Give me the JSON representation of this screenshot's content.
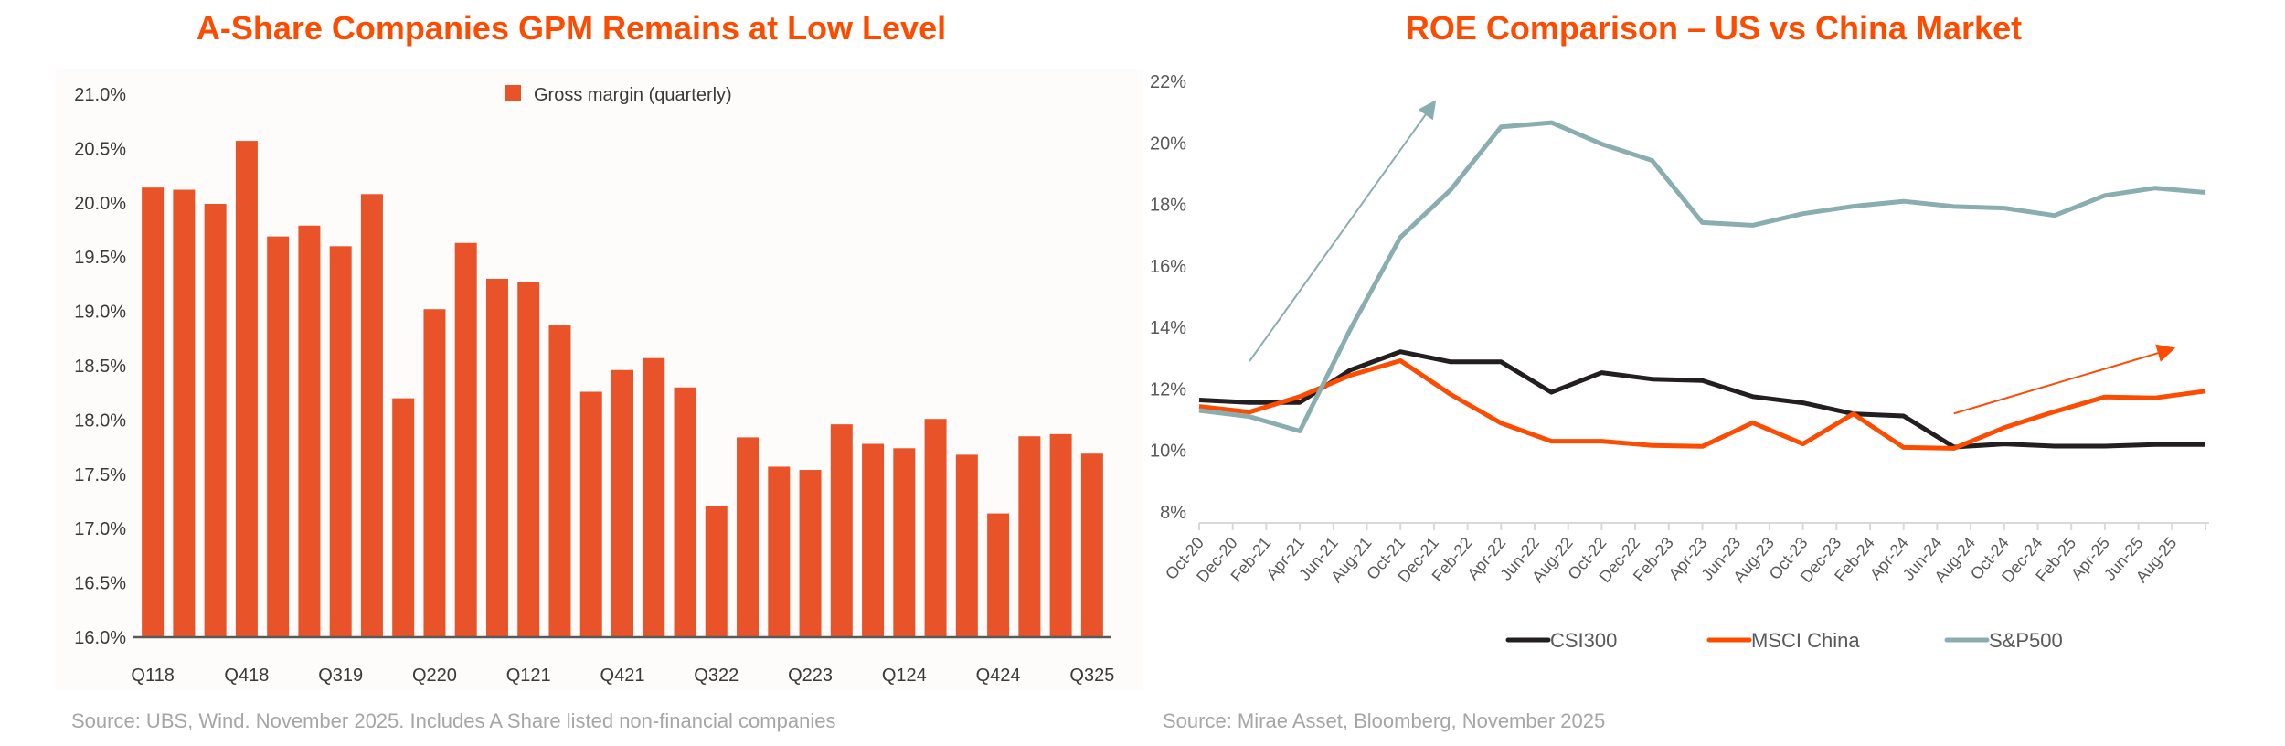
{
  "chart_data": [
    {
      "type": "bar",
      "title": "A-Share Companies GPM Remains at Low Level",
      "xlabel": "",
      "ylabel": "",
      "ylim": [
        16.0,
        21.0
      ],
      "yticks": [
        "16.0%",
        "16.5%",
        "17.0%",
        "17.5%",
        "18.0%",
        "18.5%",
        "19.0%",
        "19.5%",
        "20.0%",
        "20.5%",
        "21.0%"
      ],
      "ytick_values": [
        16.0,
        16.5,
        17.0,
        17.5,
        18.0,
        18.5,
        19.0,
        19.5,
        20.0,
        20.5,
        21.0
      ],
      "categories": [
        "Q118",
        "Q218",
        "Q318",
        "Q418",
        "Q119",
        "Q219",
        "Q319",
        "Q419",
        "Q120",
        "Q220",
        "Q320",
        "Q420",
        "Q121",
        "Q221",
        "Q321",
        "Q421",
        "Q122",
        "Q222",
        "Q322",
        "Q422",
        "Q123",
        "Q223",
        "Q323",
        "Q423",
        "Q124",
        "Q224",
        "Q324",
        "Q424",
        "Q125",
        "Q225",
        "Q325"
      ],
      "xtick_labels": [
        "Q118",
        "Q418",
        "Q319",
        "Q220",
        "Q121",
        "Q421",
        "Q322",
        "Q223",
        "Q124",
        "Q424",
        "Q325"
      ],
      "xtick_every": 3,
      "series": [
        {
          "name": "Gross margin (quarterly)",
          "color": "#e8532a",
          "values": [
            20.14,
            20.12,
            19.99,
            20.57,
            19.69,
            19.79,
            19.6,
            20.08,
            18.2,
            19.02,
            19.63,
            19.3,
            19.27,
            18.87,
            18.26,
            18.46,
            18.57,
            18.3,
            17.21,
            17.84,
            17.57,
            17.54,
            17.96,
            17.78,
            17.74,
            18.01,
            17.68,
            17.14,
            17.85,
            17.87,
            17.69
          ]
        }
      ],
      "legend": "top-center",
      "grid": false,
      "source": "Source: UBS, Wind. November 2025. Includes A Share listed non-financial companies"
    },
    {
      "type": "line",
      "title": "ROE Comparison – US vs China Market",
      "xlabel": "",
      "ylabel": "",
      "ylim": [
        8,
        22
      ],
      "yticks": [
        "8%",
        "10%",
        "12%",
        "14%",
        "16%",
        "18%",
        "20%",
        "22%"
      ],
      "ytick_values": [
        8,
        10,
        12,
        14,
        16,
        18,
        20,
        22
      ],
      "xtick_labels": [
        "Oct-20",
        "Dec-20",
        "Feb-21",
        "Apr-21",
        "Jun-21",
        "Aug-21",
        "Oct-21",
        "Dec-21",
        "Feb-22",
        "Apr-22",
        "Jun-22",
        "Aug-22",
        "Oct-22",
        "Dec-22",
        "Feb-23",
        "Apr-23",
        "Jun-23",
        "Aug-23",
        "Oct-23",
        "Dec-23",
        "Feb-24",
        "Apr-24",
        "Jun-24",
        "Aug-24",
        "Oct-24",
        "Dec-24",
        "Feb-25",
        "Apr-25",
        "Jun-25",
        "Aug-25"
      ],
      "x_months_from_oct20": [
        0,
        3,
        6,
        9,
        12,
        15,
        18,
        21,
        24,
        27,
        30,
        33,
        36,
        39,
        42,
        45,
        48,
        51,
        54,
        57,
        60
      ],
      "series": [
        {
          "name": "CSI300",
          "color": "#231f20",
          "values": [
            11.64,
            11.56,
            11.56,
            12.61,
            13.21,
            12.88,
            12.88,
            11.89,
            12.53,
            12.32,
            12.27,
            11.75,
            11.55,
            11.19,
            11.12,
            10.11,
            10.21,
            10.14,
            10.14,
            10.19,
            10.19
          ]
        },
        {
          "name": "MSCI China",
          "color": "#fc4c02",
          "values": [
            11.43,
            11.25,
            11.75,
            12.44,
            12.92,
            11.82,
            10.89,
            10.3,
            10.3,
            10.16,
            10.13,
            10.9,
            10.21,
            11.19,
            10.1,
            10.07,
            10.74,
            11.26,
            11.74,
            11.71,
            11.93
          ]
        },
        {
          "name": "S&P500",
          "color": "#8aadb0",
          "values": [
            11.3,
            11.1,
            10.63,
            13.93,
            16.93,
            18.48,
            20.52,
            20.66,
            19.96,
            19.43,
            17.41,
            17.32,
            17.7,
            17.94,
            18.1,
            17.93,
            17.88,
            17.64,
            18.29,
            18.53,
            18.39
          ]
        }
      ],
      "annotations": [
        {
          "type": "arrow",
          "color": "#8aadb0",
          "from_month": 3,
          "from_value": 12.9,
          "to_month": 14,
          "to_value": 21.3,
          "meaning": "S&P500 ROE rising"
        },
        {
          "type": "arrow",
          "color": "#fc4c02",
          "from_month": 45,
          "from_value": 11.2,
          "to_month": 58,
          "to_value": 13.3,
          "meaning": "MSCI China ROE rising"
        }
      ],
      "legend": "bottom",
      "grid": false,
      "source": "Source: Mirae Asset, Bloomberg, November 2025"
    }
  ]
}
